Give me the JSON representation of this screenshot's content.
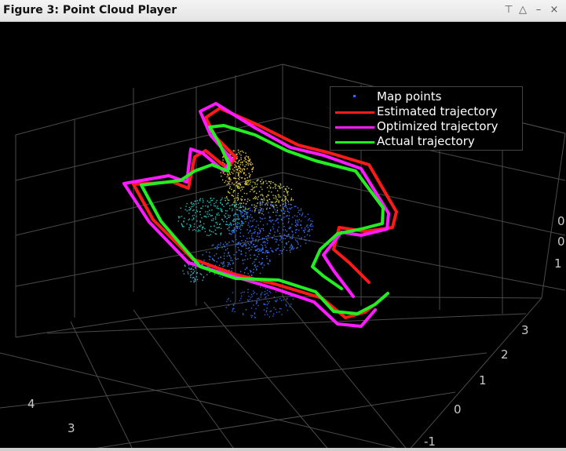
{
  "window": {
    "title": "Figure 3: Point Cloud Player",
    "controls": {
      "pin": "⊤",
      "up": "△",
      "minimize": "–",
      "close": "×"
    }
  },
  "legend": {
    "placement": "top-right",
    "items": [
      {
        "label": "Map points",
        "color": "#3a6df0",
        "kind": "marker"
      },
      {
        "label": "Estimated trajectory",
        "color": "#ff1a1a",
        "kind": "line"
      },
      {
        "label": "Optimized trajectory",
        "color": "#ff1aff",
        "kind": "line"
      },
      {
        "label": "Actual trajectory",
        "color": "#22ee22",
        "kind": "line"
      }
    ]
  },
  "axes": {
    "left_ticks": [
      "4",
      "3"
    ],
    "right_ticks": [
      "3",
      "2",
      "1",
      "0",
      "-1"
    ],
    "far_right_ticks": [
      "0",
      "0",
      "1"
    ]
  },
  "colors": {
    "background": "#000000",
    "grid": "#4a4a4a",
    "points_low": "#3a6df0",
    "points_mid": "#2ab8b8",
    "points_high": "#e8c53a"
  }
}
